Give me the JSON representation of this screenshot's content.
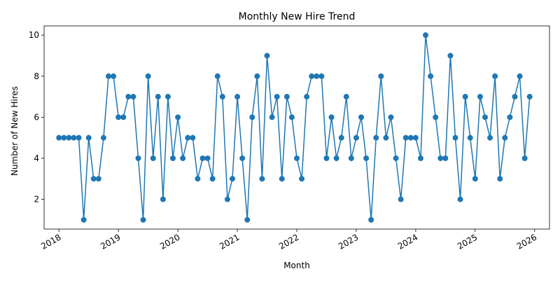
{
  "chart_data": {
    "type": "line",
    "title": "Monthly New Hire Trend",
    "xlabel": "Month",
    "ylabel": "Number of New Hires",
    "x_tick_labels": [
      "2018",
      "2019",
      "2020",
      "2021",
      "2022",
      "2023",
      "2024",
      "2025",
      "2026"
    ],
    "y_tick_labels": [
      "2",
      "4",
      "6",
      "8",
      "10"
    ],
    "xlim": [
      "2017-10",
      "2026-04"
    ],
    "ylim": [
      0.55,
      10.45
    ],
    "grid": false,
    "legend": "none",
    "color": "#1f77b4",
    "series": [
      {
        "x": [
          "2018-01",
          "2018-02",
          "2018-03",
          "2018-04",
          "2018-05",
          "2018-06",
          "2018-07",
          "2018-08",
          "2018-09",
          "2018-10",
          "2018-11",
          "2018-12",
          "2019-01",
          "2019-02",
          "2019-03",
          "2019-04",
          "2019-05",
          "2019-06",
          "2019-07",
          "2019-08",
          "2019-09",
          "2019-10",
          "2019-11",
          "2019-12",
          "2020-01",
          "2020-02",
          "2020-03",
          "2020-04",
          "2020-05",
          "2020-06",
          "2020-07",
          "2020-08",
          "2020-09",
          "2020-10",
          "2020-11",
          "2020-12",
          "2021-01",
          "2021-02",
          "2021-03",
          "2021-04",
          "2021-05",
          "2021-06",
          "2021-07",
          "2021-08",
          "2021-09",
          "2021-10",
          "2021-11",
          "2021-12",
          "2022-01",
          "2022-02",
          "2022-03",
          "2022-04",
          "2022-05",
          "2022-06",
          "2022-07",
          "2022-08",
          "2022-09",
          "2022-10",
          "2022-11",
          "2022-12",
          "2023-01",
          "2023-02",
          "2023-03",
          "2023-04",
          "2023-05",
          "2023-06",
          "2023-07",
          "2023-08",
          "2023-09",
          "2023-10",
          "2023-11",
          "2023-12",
          "2024-01",
          "2024-02",
          "2024-03",
          "2024-04",
          "2024-05",
          "2024-06",
          "2024-07",
          "2024-08",
          "2024-09",
          "2024-10",
          "2024-11",
          "2024-12",
          "2025-01",
          "2025-02",
          "2025-03",
          "2025-04",
          "2025-05",
          "2025-06",
          "2025-07",
          "2025-08",
          "2025-09",
          "2025-10",
          "2025-11",
          "2025-12"
        ],
        "values": [
          5,
          5,
          5,
          5,
          5,
          1,
          5,
          3,
          3,
          5,
          8,
          8,
          6,
          6,
          7,
          7,
          4,
          1,
          8,
          4,
          7,
          2,
          7,
          4,
          6,
          4,
          5,
          5,
          3,
          4,
          4,
          3,
          8,
          7,
          2,
          3,
          7,
          4,
          1,
          6,
          8,
          3,
          9,
          6,
          7,
          3,
          7,
          6,
          4,
          3,
          7,
          8,
          8,
          8,
          4,
          6,
          4,
          5,
          7,
          4,
          5,
          6,
          4,
          1,
          5,
          8,
          5,
          6,
          4,
          2,
          5,
          5,
          5,
          4,
          10,
          8,
          6,
          4,
          4,
          9,
          5,
          2,
          7,
          5,
          3,
          7,
          6,
          5,
          8,
          3,
          5,
          6,
          7,
          8,
          4,
          7
        ]
      }
    ]
  }
}
